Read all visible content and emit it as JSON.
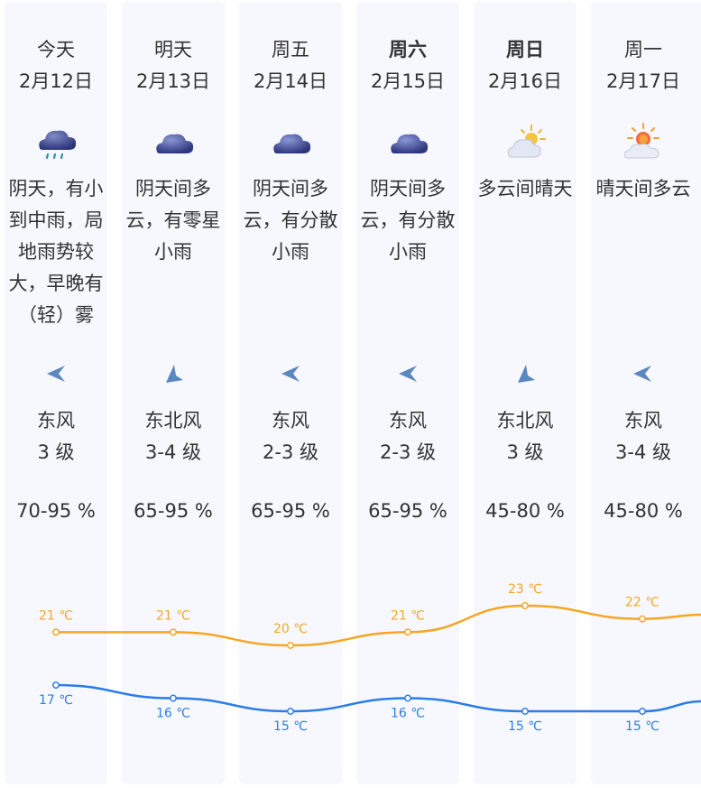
{
  "days": [
    {
      "day": "今天",
      "date": "2月12日",
      "bold": false,
      "icon": "rain-cloud-icon",
      "desc": [
        "阴天，有小",
        "到中雨，局",
        "地雨势较",
        "大，早晚有",
        "（轻）雾"
      ],
      "wind_dir": "东风",
      "wind_icon": "wind-direction-arrow-icon",
      "wind_level": "3 级",
      "humidity": "70-95 %",
      "high": "21 ℃",
      "low": "17 ℃",
      "high_value": 21,
      "low_value": 17
    },
    {
      "day": "明天",
      "date": "2月13日",
      "bold": false,
      "icon": "overcast-cloud-icon",
      "desc": [
        "阴天间多",
        "云，有零星",
        "小雨"
      ],
      "wind_dir": "东北风",
      "wind_icon": "wind-direction-arrow-icon",
      "wind_level": "3-4 级",
      "humidity": "65-95 %",
      "high": "21 ℃",
      "low": "16 ℃",
      "high_value": 21,
      "low_value": 16
    },
    {
      "day": "周五",
      "date": "2月14日",
      "bold": false,
      "icon": "overcast-cloud-icon",
      "desc": [
        "阴天间多",
        "云，有分散",
        "小雨"
      ],
      "wind_dir": "东风",
      "wind_icon": "wind-direction-arrow-icon",
      "wind_level": "2-3 级",
      "humidity": "65-95 %",
      "high": "20 ℃",
      "low": "15 ℃",
      "high_value": 20,
      "low_value": 15
    },
    {
      "day": "周六",
      "date": "2月15日",
      "bold": true,
      "icon": "overcast-cloud-icon",
      "desc": [
        "阴天间多",
        "云，有分散",
        "小雨"
      ],
      "wind_dir": "东风",
      "wind_icon": "wind-direction-arrow-icon",
      "wind_level": "2-3 级",
      "humidity": "65-95 %",
      "high": "21 ℃",
      "low": "16 ℃",
      "high_value": 21,
      "low_value": 16
    },
    {
      "day": "周日",
      "date": "2月16日",
      "bold": true,
      "icon": "partly-cloudy-icon",
      "desc": [
        "多云间晴天"
      ],
      "wind_dir": "东北风",
      "wind_icon": "wind-direction-arrow-icon",
      "wind_level": "3 级",
      "humidity": "45-80 %",
      "high": "23 ℃",
      "low": "15 ℃",
      "high_value": 23,
      "low_value": 15
    },
    {
      "day": "周一",
      "date": "2月17日",
      "bold": false,
      "icon": "sunny-interval-icon",
      "desc": [
        "晴天间多云"
      ],
      "wind_dir": "东风",
      "wind_icon": "wind-direction-arrow-icon",
      "wind_level": "3-4 级",
      "humidity": "45-80 %",
      "high": "22 ℃",
      "low": "15 ℃",
      "high_value": 22,
      "low_value": 15
    }
  ],
  "colors": {
    "high_line": "#f5a623",
    "low_line": "#2b7de9",
    "column_bg": "#f7f8fd"
  }
}
